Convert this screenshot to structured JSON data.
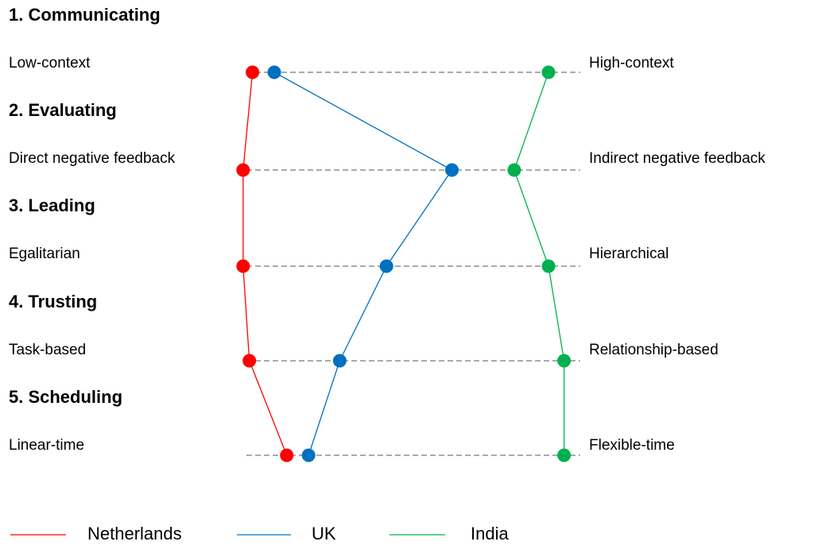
{
  "chart_data": {
    "type": "line",
    "title": "",
    "dimensions": [
      {
        "number_title": "1. Communicating",
        "left_label": "Low-context",
        "right_label": "High-context"
      },
      {
        "number_title": "2. Evaluating",
        "left_label": "Direct negative feedback",
        "right_label": "Indirect negative feedback"
      },
      {
        "number_title": "3. Leading",
        "left_label": "Egalitarian",
        "right_label": "Hierarchical"
      },
      {
        "number_title": "4. Trusting",
        "left_label": "Task-based",
        "right_label": "Relationship-based"
      },
      {
        "number_title": "5. Scheduling",
        "left_label": "Linear-time",
        "right_label": "Flexible-time"
      }
    ],
    "scale": {
      "min": 0,
      "max": 10
    },
    "series": [
      {
        "name": "Netherlands",
        "color": "#ff0000",
        "values": [
          0.5,
          0.2,
          0.2,
          0.4,
          1.6
        ]
      },
      {
        "name": "UK",
        "color": "#0070c0",
        "values": [
          1.2,
          6.9,
          4.8,
          3.3,
          2.3
        ]
      },
      {
        "name": "India",
        "color": "#00b050",
        "values": [
          10.0,
          8.9,
          10.0,
          10.5,
          10.5
        ]
      }
    ],
    "legend_position": "bottom",
    "grid": false
  }
}
